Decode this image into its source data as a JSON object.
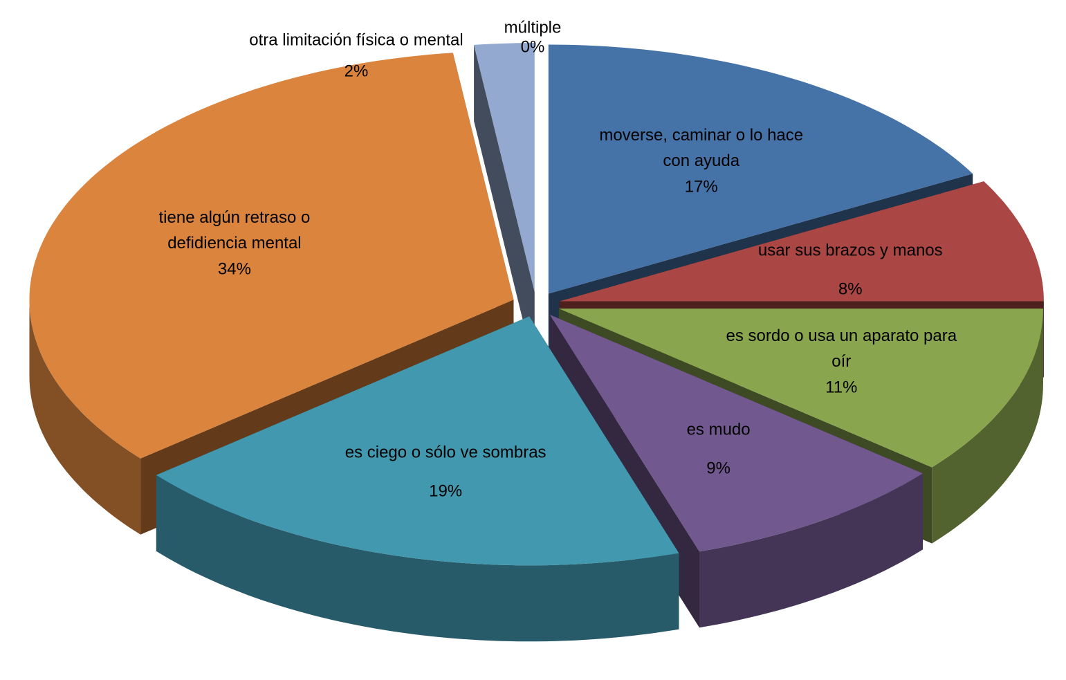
{
  "chart_data": {
    "type": "pie3d",
    "categories": [
      "moverse, caminar o lo hace con ayuda",
      "usar sus brazos y manos",
      "es sordo o usa un aparato para oír",
      "es mudo",
      "es ciego o sólo ve sombras",
      "tiene algún retraso o defidiencia mental",
      "otra limitación física o mental",
      "múltiple"
    ],
    "values": [
      17,
      8,
      11,
      9,
      19,
      34,
      2,
      0
    ],
    "value_labels": [
      "17%",
      "8%",
      "11%",
      "9%",
      "19%",
      "34%",
      "2%",
      "0%"
    ],
    "colors": [
      "#4572a7",
      "#aa4643",
      "#89a54e",
      "#71588f",
      "#4198af",
      "#db843d",
      "#93a9cf",
      "#b9cd96"
    ],
    "exploded": true
  }
}
